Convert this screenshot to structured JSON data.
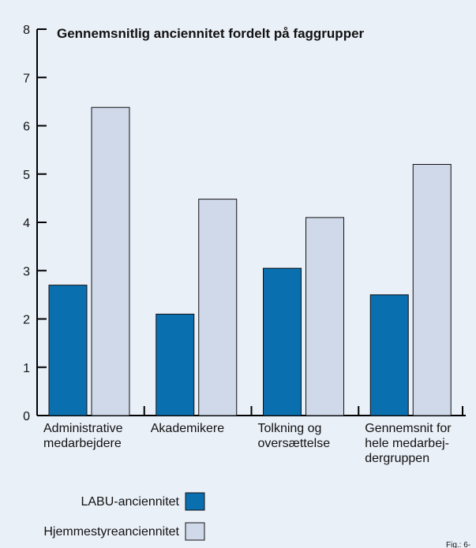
{
  "chart_data": {
    "type": "bar",
    "title": "Gennemsnitlig anciennitet fordelt på faggrupper",
    "xlabel": "",
    "ylabel": "",
    "ylim": [
      0,
      8
    ],
    "yticks": [
      "0",
      "1",
      "2",
      "3",
      "4",
      "5",
      "6",
      "7",
      "8"
    ],
    "grid": false,
    "legend_position": "bottom-left",
    "categories": [
      [
        "Administrative",
        "medarbejdere"
      ],
      [
        "Akademikere"
      ],
      [
        "Tolkning og",
        "oversættelse"
      ],
      [
        "Gennemsnit for",
        "hele medarbej-",
        "dergruppen"
      ]
    ],
    "series": [
      {
        "name": "LABU-anciennitet",
        "color": "#0a6faf",
        "values": [
          2.7,
          2.1,
          3.05,
          2.5
        ]
      },
      {
        "name": "Hjemmestyreanciennitet",
        "color": "#cfd9ea",
        "values": [
          6.38,
          4.48,
          4.1,
          5.2
        ]
      }
    ],
    "figure_label": "Fig.: 6-"
  },
  "colors": {
    "background": "#eaf0f8",
    "axis": "#000000",
    "bar_stroke": "#111111"
  }
}
